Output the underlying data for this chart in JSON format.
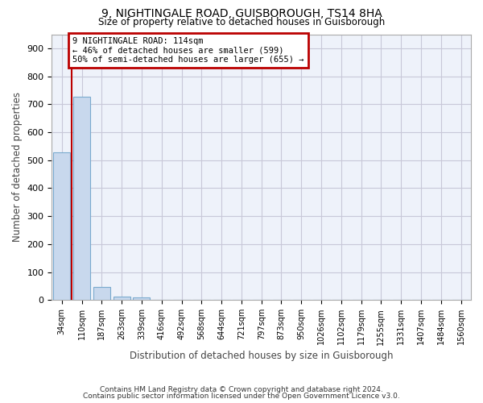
{
  "title1": "9, NIGHTINGALE ROAD, GUISBOROUGH, TS14 8HA",
  "title2": "Size of property relative to detached houses in Guisborough",
  "xlabel": "Distribution of detached houses by size in Guisborough",
  "ylabel": "Number of detached properties",
  "categories": [
    "34sqm",
    "110sqm",
    "187sqm",
    "263sqm",
    "339sqm",
    "416sqm",
    "492sqm",
    "568sqm",
    "644sqm",
    "721sqm",
    "797sqm",
    "873sqm",
    "950sqm",
    "1026sqm",
    "1102sqm",
    "1179sqm",
    "1255sqm",
    "1331sqm",
    "1407sqm",
    "1484sqm",
    "1560sqm"
  ],
  "bar_heights": [
    527,
    727,
    47,
    13,
    10,
    0,
    0,
    0,
    0,
    0,
    0,
    0,
    0,
    0,
    0,
    0,
    0,
    0,
    0,
    0,
    0
  ],
  "bar_color": "#c8d8ed",
  "bar_edge_color": "#7aaace",
  "annotation_line1": "9 NIGHTINGALE ROAD: 114sqm",
  "annotation_line2": "← 46% of detached houses are smaller (599)",
  "annotation_line3": "50% of semi-detached houses are larger (655) →",
  "annotation_box_color": "#bb0000",
  "ylim": [
    0,
    950
  ],
  "yticks": [
    0,
    100,
    200,
    300,
    400,
    500,
    600,
    700,
    800,
    900
  ],
  "footer1": "Contains HM Land Registry data © Crown copyright and database right 2024.",
  "footer2": "Contains public sector information licensed under the Open Government Licence v3.0.",
  "bg_color": "#eef2fa",
  "grid_color": "#c8c8d8"
}
